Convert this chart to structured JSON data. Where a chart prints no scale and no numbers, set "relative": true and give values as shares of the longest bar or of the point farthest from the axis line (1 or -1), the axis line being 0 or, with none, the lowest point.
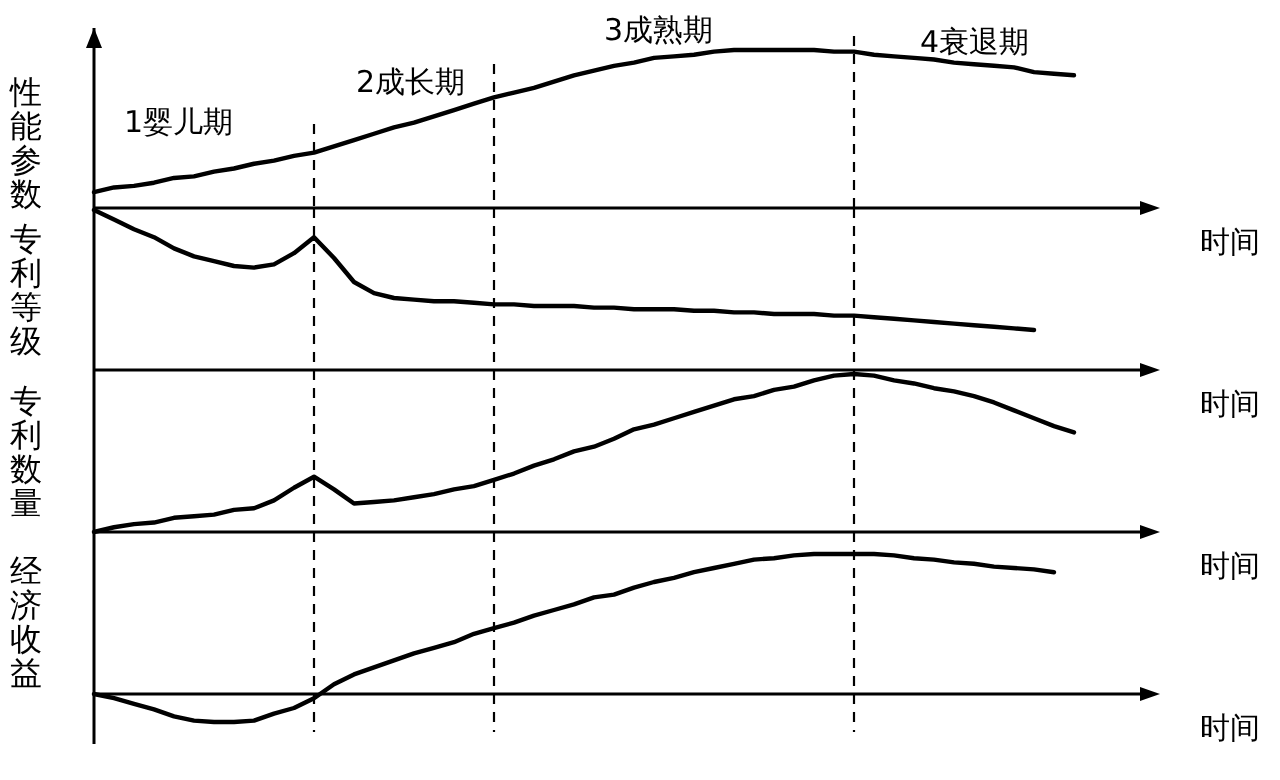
{
  "chart_data": [
    {
      "type": "line",
      "relative": true,
      "grid": "x",
      "ylabel": "性能参数",
      "xlabel": "时间",
      "annotations": [
        "1婴儿期",
        "2成长期",
        "3成熟期",
        "4衰退期"
      ],
      "categories": [
        null,
        null,
        null,
        null,
        null,
        null,
        null,
        null,
        null,
        null,
        null,
        null,
        null,
        null,
        null,
        null,
        null,
        null,
        null,
        null,
        null,
        null,
        null,
        null,
        null,
        null,
        null,
        null,
        null,
        null,
        null,
        null,
        null,
        null,
        null,
        null,
        null,
        null,
        null,
        null,
        null,
        null,
        null,
        null,
        null,
        null,
        null,
        null,
        null,
        null
      ],
      "series": [
        {
          "color": "#000000",
          "values": [
            0.1,
            0.13,
            0.14,
            0.16,
            0.19,
            0.2,
            0.23,
            0.25,
            0.28,
            0.3,
            0.33,
            0.35,
            0.39,
            0.43,
            0.47,
            0.51,
            0.54,
            0.58,
            0.62,
            0.66,
            0.7,
            0.73,
            0.76,
            0.8,
            0.84,
            0.87,
            0.9,
            0.92,
            0.95,
            0.96,
            0.97,
            0.99,
            1,
            1,
            1,
            1,
            1,
            0.99,
            0.99,
            0.97,
            0.96,
            0.95,
            0.94,
            0.92,
            0.91,
            0.9,
            0.89,
            0.86,
            0.85,
            0.84
          ]
        }
      ]
    },
    {
      "type": "line",
      "relative": true,
      "grid": "x",
      "ylabel": "专利等级",
      "xlabel": "时间",
      "categories": [
        null,
        null,
        null,
        null,
        null,
        null,
        null,
        null,
        null,
        null,
        null,
        null,
        null,
        null,
        null,
        null,
        null,
        null,
        null,
        null,
        null,
        null,
        null,
        null,
        null,
        null,
        null,
        null,
        null,
        null,
        null,
        null,
        null,
        null,
        null,
        null,
        null,
        null,
        null,
        null,
        null,
        null,
        null,
        null,
        null,
        null,
        null,
        null,
        null,
        null
      ],
      "series": [
        {
          "color": "#000000",
          "values": [
            1,
            0.94,
            0.88,
            0.83,
            0.76,
            0.71,
            0.68,
            0.65,
            0.64,
            0.66,
            0.73,
            0.83,
            0.7,
            0.55,
            0.48,
            0.45,
            0.44,
            0.43,
            0.43,
            0.42,
            0.41,
            0.41,
            0.4,
            0.4,
            0.4,
            0.39,
            0.39,
            0.38,
            0.38,
            0.38,
            0.37,
            0.37,
            0.36,
            0.36,
            0.35,
            0.35,
            0.35,
            0.34,
            0.34,
            0.33,
            0.32,
            0.31,
            0.3,
            0.29,
            0.28,
            0.27,
            0.26,
            0.25,
            null,
            null
          ]
        }
      ]
    },
    {
      "type": "line",
      "relative": true,
      "grid": "x",
      "ylabel": "专利数量",
      "xlabel": "时间",
      "categories": [
        null,
        null,
        null,
        null,
        null,
        null,
        null,
        null,
        null,
        null,
        null,
        null,
        null,
        null,
        null,
        null,
        null,
        null,
        null,
        null,
        null,
        null,
        null,
        null,
        null,
        null,
        null,
        null,
        null,
        null,
        null,
        null,
        null,
        null,
        null,
        null,
        null,
        null,
        null,
        null,
        null,
        null,
        null,
        null,
        null,
        null,
        null,
        null,
        null,
        null
      ],
      "series": [
        {
          "color": "#000000",
          "values": [
            0,
            0.03,
            0.05,
            0.06,
            0.09,
            0.1,
            0.11,
            0.14,
            0.15,
            0.2,
            0.28,
            0.35,
            0.27,
            0.18,
            0.19,
            0.2,
            0.22,
            0.24,
            0.27,
            0.29,
            0.33,
            0.37,
            0.42,
            0.46,
            0.51,
            0.54,
            0.59,
            0.65,
            0.68,
            0.72,
            0.76,
            0.8,
            0.84,
            0.86,
            0.9,
            0.92,
            0.96,
            0.99,
            1,
            0.99,
            0.96,
            0.94,
            0.91,
            0.89,
            0.86,
            0.82,
            0.77,
            0.72,
            0.67,
            0.63
          ]
        }
      ]
    },
    {
      "type": "line",
      "relative": true,
      "grid": "x",
      "ylabel": "经济收益",
      "xlabel": "时间",
      "categories": [
        null,
        null,
        null,
        null,
        null,
        null,
        null,
        null,
        null,
        null,
        null,
        null,
        null,
        null,
        null,
        null,
        null,
        null,
        null,
        null,
        null,
        null,
        null,
        null,
        null,
        null,
        null,
        null,
        null,
        null,
        null,
        null,
        null,
        null,
        null,
        null,
        null,
        null,
        null,
        null,
        null,
        null,
        null,
        null,
        null,
        null,
        null,
        null,
        null,
        null
      ],
      "series": [
        {
          "color": "#000000",
          "values": [
            0,
            -0.03,
            -0.07,
            -0.11,
            -0.16,
            -0.19,
            -0.2,
            -0.2,
            -0.19,
            -0.14,
            -0.1,
            -0.03,
            0.07,
            0.14,
            0.19,
            0.24,
            0.29,
            0.33,
            0.37,
            0.43,
            0.47,
            0.51,
            0.56,
            0.6,
            0.64,
            0.69,
            0.71,
            0.76,
            0.8,
            0.83,
            0.87,
            0.9,
            0.93,
            0.96,
            0.97,
            0.99,
            1,
            1,
            1,
            1,
            0.99,
            0.97,
            0.96,
            0.94,
            0.93,
            0.91,
            0.9,
            0.89,
            0.87,
            null
          ]
        }
      ]
    }
  ]
}
